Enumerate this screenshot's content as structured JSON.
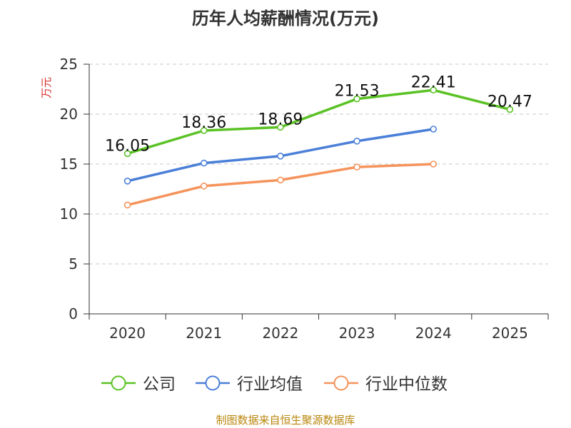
{
  "chart_data": {
    "type": "line",
    "title": "历年人均薪酬情况(万元)",
    "ylabel": "万元",
    "xlabel": "",
    "categories": [
      "2020",
      "2021",
      "2022",
      "2023",
      "2024",
      "2025"
    ],
    "ylim": [
      0,
      25
    ],
    "yticks": [
      0,
      5,
      10,
      15,
      20,
      25
    ],
    "grid": true,
    "legend_position": "bottom",
    "series": [
      {
        "name": "公司",
        "color": "#5ac224",
        "values": [
          16.05,
          18.36,
          18.69,
          21.53,
          22.41,
          20.47
        ],
        "labels": [
          "16.05",
          "18.36",
          "18.69",
          "21.53",
          "22.41",
          "20.47"
        ]
      },
      {
        "name": "行业均值",
        "color": "#4a7fd8",
        "values": [
          13.3,
          15.1,
          15.8,
          17.3,
          18.5,
          null
        ]
      },
      {
        "name": "行业中位数",
        "color": "#f5935b",
        "values": [
          10.9,
          12.8,
          13.4,
          14.7,
          15.0,
          null
        ]
      }
    ]
  },
  "footer": "制图数据来自恒生聚源数据库"
}
